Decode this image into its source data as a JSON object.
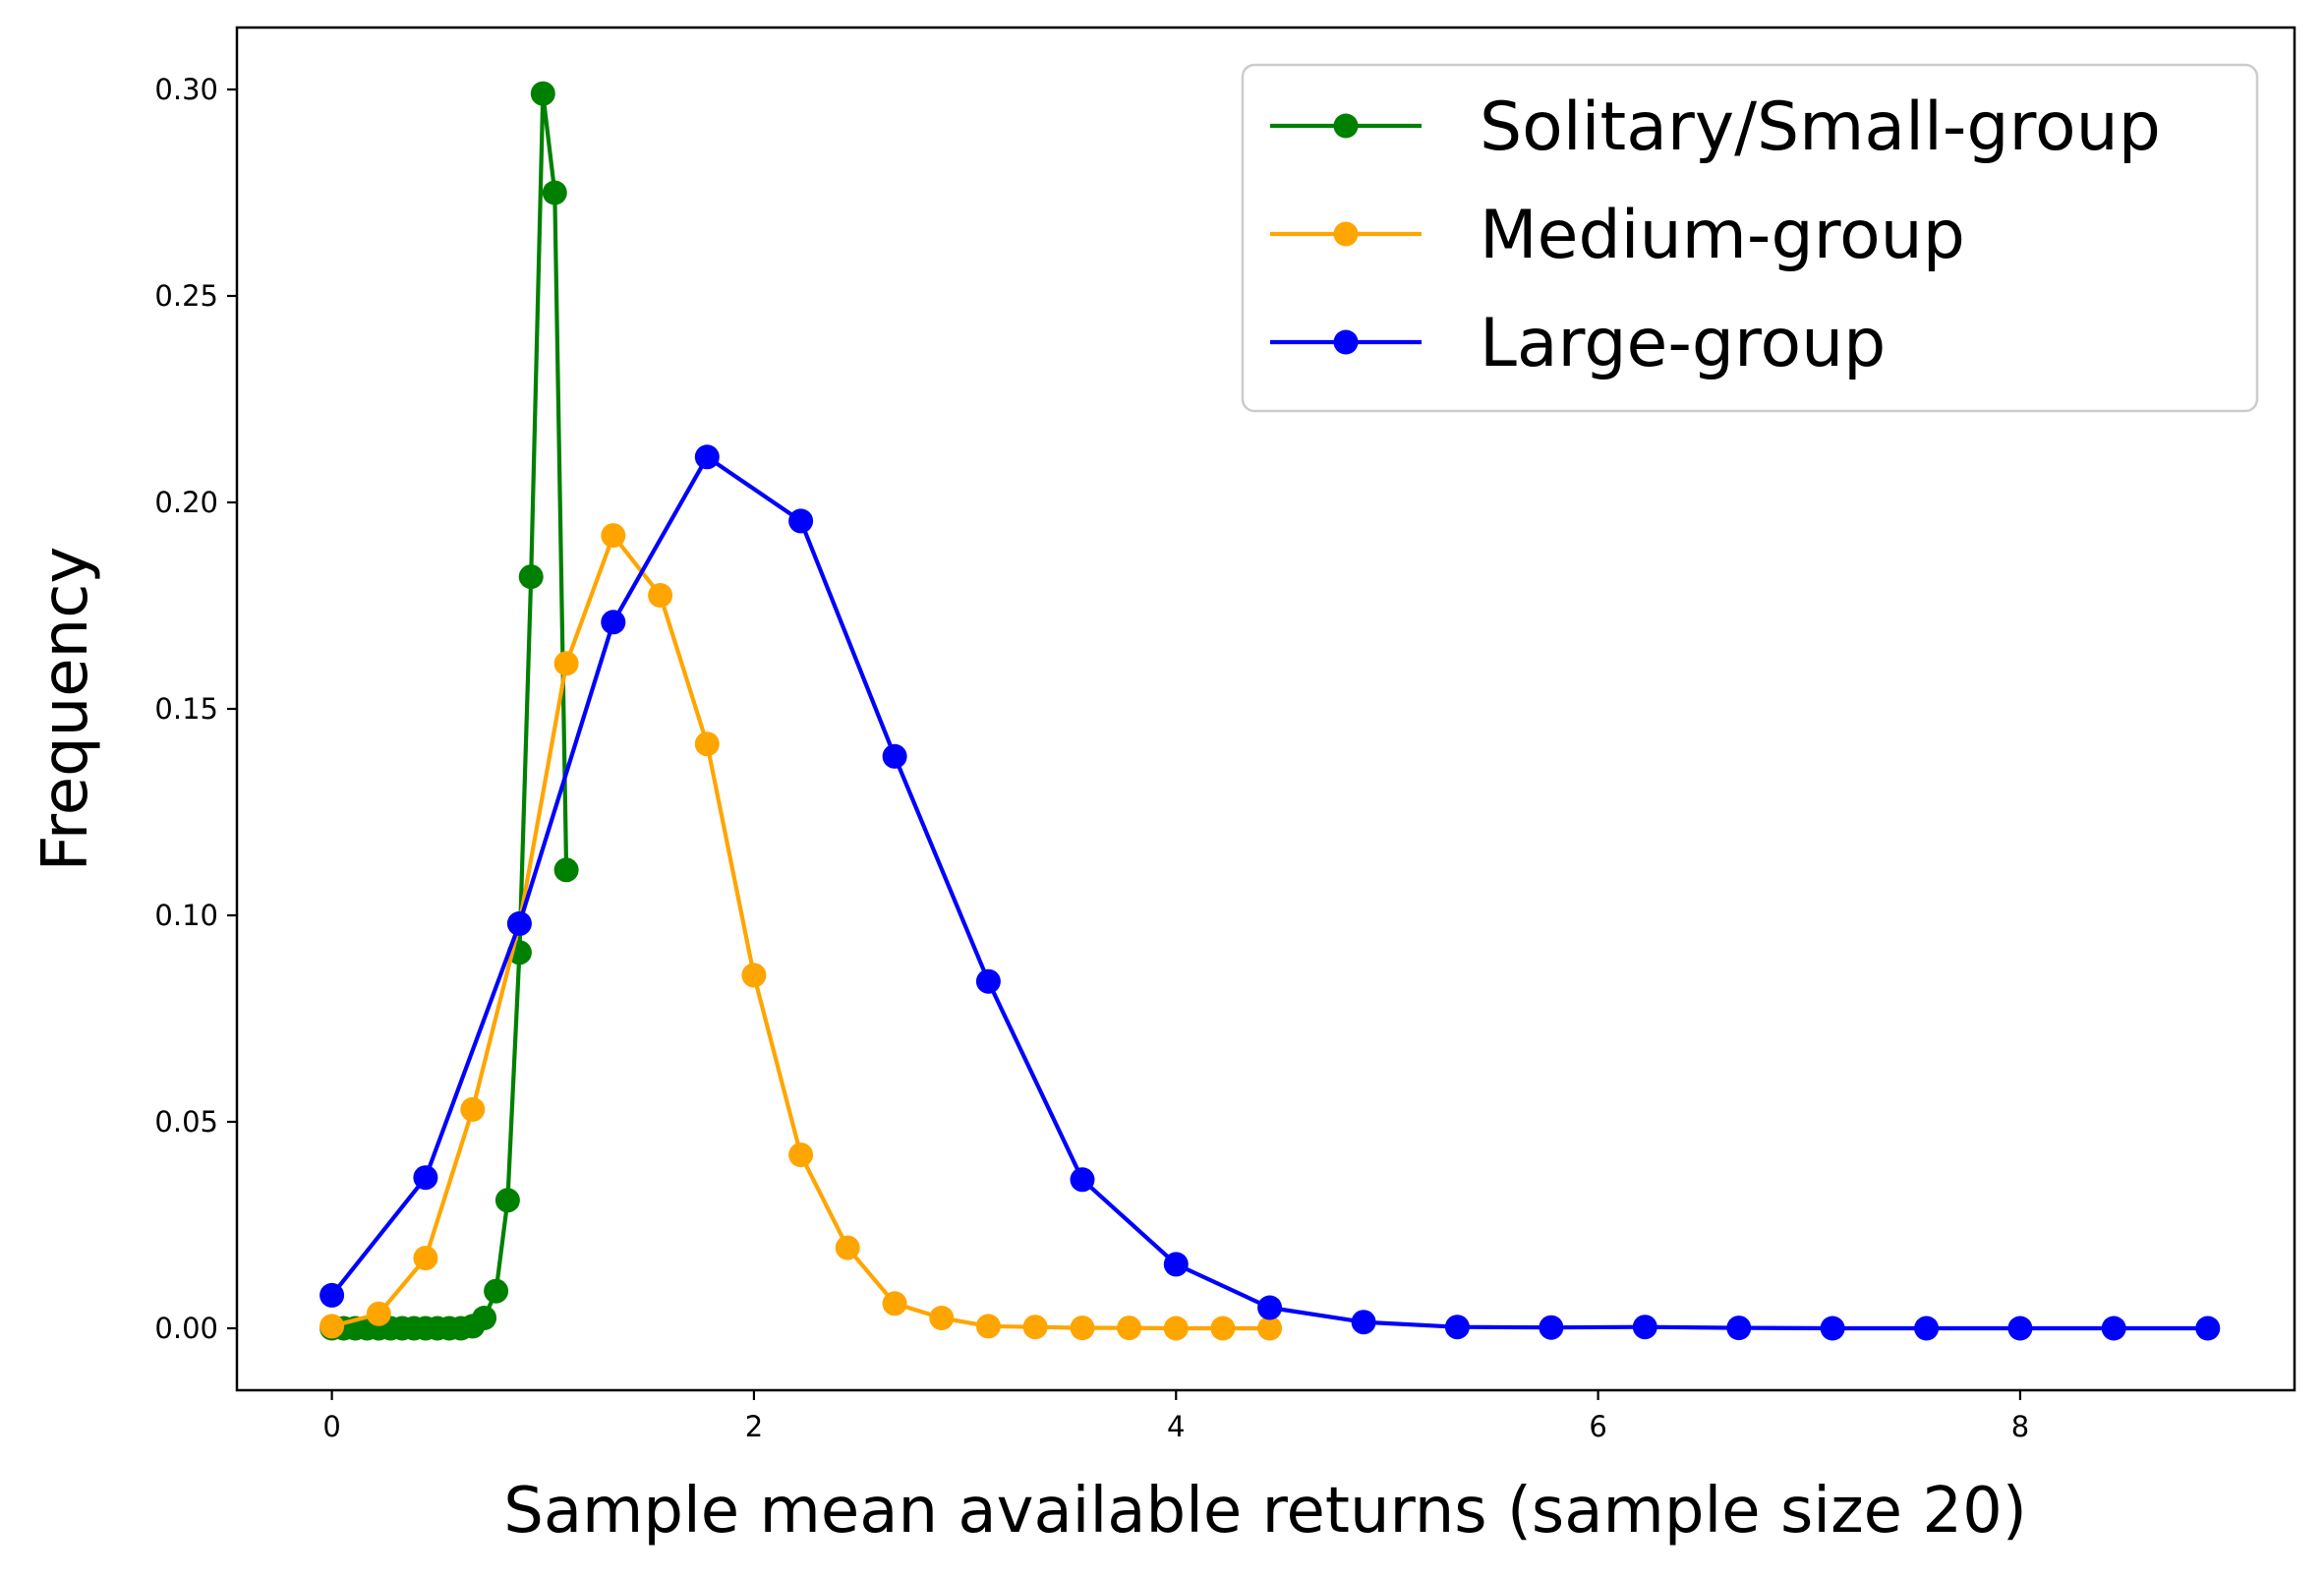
{
  "chart_data": {
    "type": "line",
    "xlabel": "Sample mean available returns (sample size 20)",
    "ylabel": "Frequency",
    "xlim": [
      -0.45,
      9.3
    ],
    "ylim": [
      -0.015,
      0.315
    ],
    "xticks": [
      0,
      2,
      4,
      6,
      8
    ],
    "xtick_labels": [
      "0",
      "2",
      "4",
      "6",
      "8"
    ],
    "yticks": [
      0.0,
      0.05,
      0.1,
      0.15,
      0.2,
      0.25,
      0.3
    ],
    "ytick_labels": [
      "0.00",
      "0.05",
      "0.10",
      "0.15",
      "0.20",
      "0.25",
      "0.30"
    ],
    "grid": false,
    "legend_position": "top-right",
    "series": [
      {
        "name": "Solitary/Small-group",
        "color": "#008000",
        "x": [
          0,
          0.056,
          0.111,
          0.167,
          0.222,
          0.278,
          0.333,
          0.389,
          0.444,
          0.5,
          0.556,
          0.611,
          0.667,
          0.722,
          0.778,
          0.833,
          0.889,
          0.944,
          1.0,
          1.056,
          1.111
        ],
        "y": [
          0.0,
          0.0,
          0.0,
          0.0,
          0.0,
          0.0,
          0.0,
          0.0,
          0.0,
          0.0,
          0.0,
          0.0,
          0.0005,
          0.0025,
          0.009,
          0.031,
          0.091,
          0.182,
          0.299,
          0.275,
          0.111
        ]
      },
      {
        "name": "Medium-group",
        "color": "#ffa500",
        "x": [
          0,
          0.222,
          0.444,
          0.667,
          0.889,
          1.111,
          1.333,
          1.556,
          1.778,
          2.0,
          2.222,
          2.444,
          2.667,
          2.889,
          3.111,
          3.333,
          3.556,
          3.778,
          4.0,
          4.222,
          4.444
        ],
        "y": [
          0.0005,
          0.0035,
          0.017,
          0.053,
          0.098,
          0.161,
          0.192,
          0.1775,
          0.1415,
          0.0855,
          0.042,
          0.0195,
          0.006,
          0.0025,
          0.0005,
          0.0003,
          0.0001,
          0.0001,
          0.0,
          0.0,
          0.0
        ]
      },
      {
        "name": "Large-group",
        "color": "#0000ff",
        "x": [
          0,
          0.444,
          0.889,
          1.333,
          1.778,
          2.222,
          2.667,
          3.111,
          3.556,
          4.0,
          4.444,
          4.889,
          5.333,
          5.778,
          6.222,
          6.667,
          7.111,
          7.556,
          8.0,
          8.444,
          8.889
        ],
        "y": [
          0.008,
          0.0365,
          0.098,
          0.171,
          0.211,
          0.1955,
          0.1385,
          0.084,
          0.036,
          0.0155,
          0.005,
          0.0015,
          0.0003,
          0.0002,
          0.0003,
          0.0001,
          0.0,
          0.0,
          0.0,
          0.0,
          0.0
        ]
      }
    ]
  }
}
